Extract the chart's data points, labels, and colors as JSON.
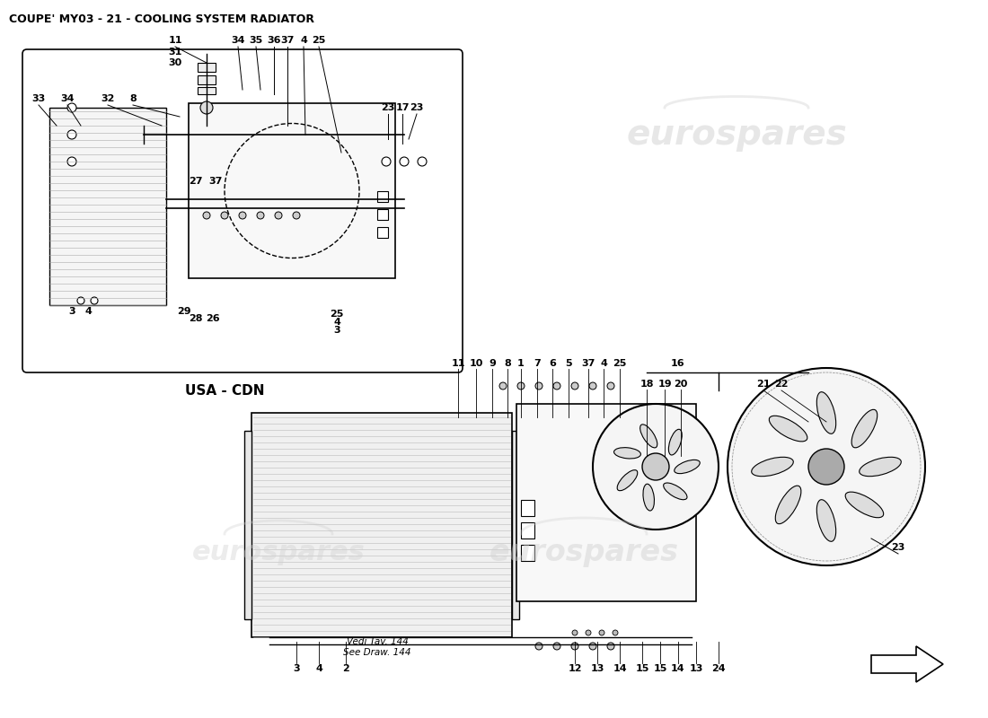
{
  "title": "COUPE' MY03 - 21 - COOLING SYSTEM RADIATOR",
  "title_fontsize": 9,
  "background_color": "#ffffff",
  "watermark_text": "eurospares",
  "watermark_color": "#d0d0d0",
  "usa_cdn_label": "USA - CDN",
  "vedi_label": "Vedi Tav. 144\nSee Draw. 144",
  "fig_width": 11.0,
  "fig_height": 8.0,
  "dpi": 100
}
